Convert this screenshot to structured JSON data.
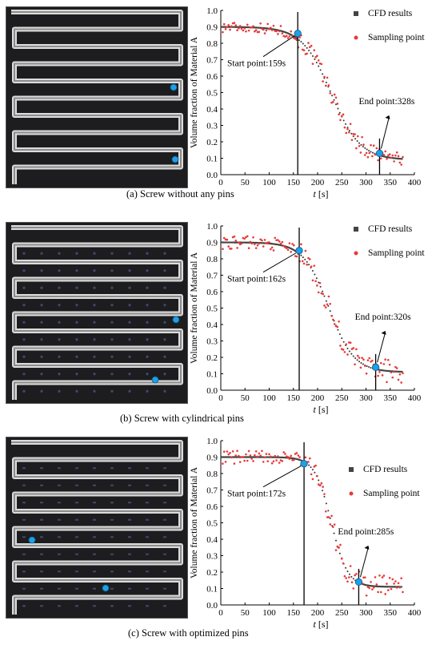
{
  "panels": [
    {
      "caption": "(a) Screw without any pins",
      "photo": {
        "pins": "none",
        "marker_color": "#1ea0e6"
      },
      "chart_data": {
        "type": "scatter",
        "xlabel_italic": "t",
        "xlabel_unit": " [s]",
        "ylabel": "Volume fraction of Material A",
        "xlim": [
          0,
          400
        ],
        "ylim": [
          0.0,
          1.0
        ],
        "xticks": [
          "0",
          "50",
          "100",
          "150",
          "200",
          "250",
          "300",
          "350",
          "400"
        ],
        "yticks": [
          "0.0",
          "0.1",
          "0.2",
          "0.3",
          "0.4",
          "0.5",
          "0.6",
          "0.7",
          "0.8",
          "0.9",
          "1.0"
        ],
        "legend": [
          {
            "label": "CFD results",
            "marker": "square",
            "color": "#444444"
          },
          {
            "label": "Sampling point",
            "marker": "dot",
            "color": "#e83a3a"
          }
        ],
        "legend_position": "top-right",
        "cfd_params": {
          "y_start": 0.9,
          "y_end": 0.09,
          "t_mid": 228,
          "width": 30
        },
        "start": {
          "t": 159,
          "y": 0.86,
          "label": "Start point:159s"
        },
        "end": {
          "t": 328,
          "y": 0.13,
          "label": "End point:328s"
        },
        "noise": 0.04
      }
    },
    {
      "caption": "(b) Screw with cylindrical pins",
      "photo": {
        "pins": "cylindrical",
        "marker_color": "#1ea0e6"
      },
      "chart_data": {
        "type": "scatter",
        "xlabel_italic": "t",
        "xlabel_unit": " [s]",
        "ylabel": "Volume fraction of Material A",
        "xlim": [
          0,
          400
        ],
        "ylim": [
          0.0,
          1.0
        ],
        "xticks": [
          "0",
          "50",
          "100",
          "150",
          "200",
          "250",
          "300",
          "350",
          "400"
        ],
        "yticks": [
          "0.0",
          "0.1",
          "0.2",
          "0.3",
          "0.4",
          "0.5",
          "0.6",
          "0.7",
          "0.8",
          "0.9",
          "1.0"
        ],
        "legend": [
          {
            "label": "CFD results",
            "marker": "square",
            "color": "#444444"
          },
          {
            "label": "Sampling point",
            "marker": "dot",
            "color": "#e83a3a"
          }
        ],
        "legend_position": "top-right",
        "cfd_params": {
          "y_start": 0.9,
          "y_end": 0.11,
          "t_mid": 223,
          "width": 26
        },
        "start": {
          "t": 162,
          "y": 0.85,
          "label": "Start point:162s"
        },
        "end": {
          "t": 320,
          "y": 0.14,
          "label": "End point:320s"
        },
        "noise": 0.05
      }
    },
    {
      "caption": "(c) Screw with optimized pins",
      "photo": {
        "pins": "optimized",
        "marker_color": "#1ea0e6"
      },
      "chart_data": {
        "type": "scatter",
        "xlabel_italic": "t",
        "xlabel_unit": " [s]",
        "ylabel": "Volume fraction of Material A",
        "xlim": [
          0,
          400
        ],
        "ylim": [
          0.0,
          1.0
        ],
        "xticks": [
          "0",
          "50",
          "100",
          "150",
          "200",
          "250",
          "300",
          "350",
          "400"
        ],
        "yticks": [
          "0.0",
          "0.1",
          "0.2",
          "0.3",
          "0.4",
          "0.5",
          "0.6",
          "0.7",
          "0.8",
          "0.9",
          "1.0"
        ],
        "legend": [
          {
            "label": "CFD results",
            "marker": "square",
            "color": "#444444"
          },
          {
            "label": "Sampling point",
            "marker": "dot",
            "color": "#e83a3a"
          }
        ],
        "legend_position": "right",
        "cfd_params": {
          "y_start": 0.9,
          "y_end": 0.11,
          "t_mid": 228,
          "width": 17
        },
        "start": {
          "t": 172,
          "y": 0.86,
          "label": "Start point:172s"
        },
        "end": {
          "t": 285,
          "y": 0.14,
          "label": "End point:285s"
        },
        "noise": 0.05
      }
    }
  ]
}
